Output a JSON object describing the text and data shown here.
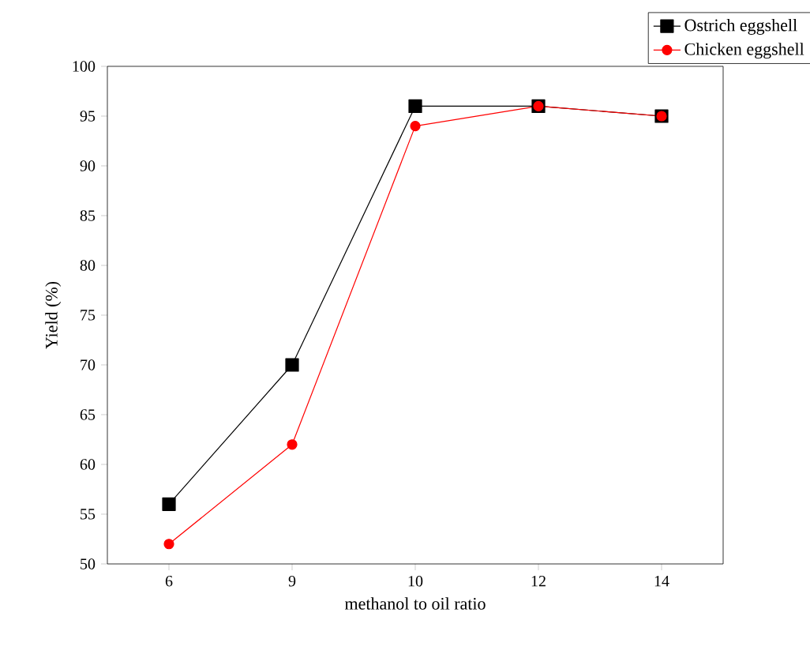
{
  "chart_data": {
    "type": "line",
    "xlabel": "methanol to oil ratio",
    "ylabel": "Yield (%)",
    "categories": [
      "6",
      "9",
      "10",
      "12",
      "14"
    ],
    "ylim": [
      50,
      100
    ],
    "yticks": [
      50,
      55,
      60,
      65,
      70,
      75,
      80,
      85,
      90,
      95,
      100
    ],
    "legend": "top right",
    "grid": false,
    "line_style": "solid",
    "series": [
      {
        "name": "Ostrich eggshell",
        "color": "#000000",
        "marker": "square",
        "values": [
          56,
          70,
          96,
          96,
          95
        ]
      },
      {
        "name": "Chicken eggshell",
        "color": "#ff0000",
        "marker": "circle",
        "values": [
          52,
          62,
          94,
          96,
          95
        ]
      }
    ]
  }
}
